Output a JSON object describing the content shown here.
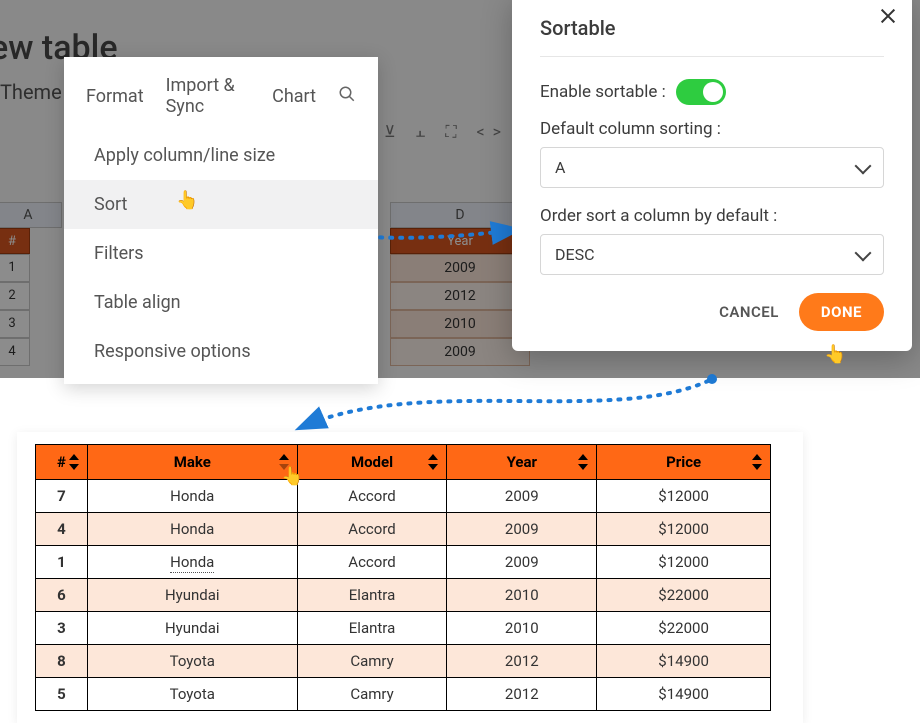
{
  "colors": {
    "accent_orange": "#ff6815",
    "button_orange": "#ff7a1a",
    "toggle_green": "#2ecc40",
    "arrow_blue": "#1f7bd6",
    "row_even": "#fde7d9",
    "row_odd": "#ffffff",
    "bg_header": "#d9561f"
  },
  "background": {
    "title": "ew table",
    "tabs_visible": {
      "theme": "Theme"
    },
    "col_letters": {
      "a": "A",
      "d": "D"
    },
    "header_cells": {
      "num": "#",
      "year": "Year"
    },
    "row_numbers": [
      "1",
      "2",
      "3",
      "4"
    ],
    "year_cells": [
      "2009",
      "2012",
      "2010",
      "2009"
    ]
  },
  "menu": {
    "tabs": {
      "format": "Format",
      "import": "Import & Sync",
      "chart": "Chart"
    },
    "items": {
      "apply": "Apply column/line size",
      "sort": "Sort",
      "filters": "Filters",
      "align": "Table align",
      "responsive": "Responsive options"
    }
  },
  "panel": {
    "title": "Sortable",
    "enable_label": "Enable sortable :",
    "enabled": true,
    "default_col_label": "Default column sorting :",
    "default_col_value": "A",
    "order_label": "Order sort a column by default :",
    "order_value": "DESC",
    "cancel": "CANCEL",
    "done": "DONE"
  },
  "result_table": {
    "columns": [
      "#",
      "Make",
      "Model",
      "Year",
      "Price"
    ],
    "sorted_column_index": 1,
    "rows": [
      [
        "7",
        "Honda",
        "Accord",
        "2009",
        "$12000"
      ],
      [
        "4",
        "Honda",
        "Accord",
        "2009",
        "$12000"
      ],
      [
        "1",
        "Honda",
        "Accord",
        "2009",
        "$12000"
      ],
      [
        "6",
        "Hyundai",
        "Elantra",
        "2010",
        "$22000"
      ],
      [
        "3",
        "Hyundai",
        "Elantra",
        "2010",
        "$22000"
      ],
      [
        "8",
        "Toyota",
        "Camry",
        "2012",
        "$14900"
      ],
      [
        "5",
        "Toyota",
        "Camry",
        "2012",
        "$14900"
      ]
    ]
  }
}
